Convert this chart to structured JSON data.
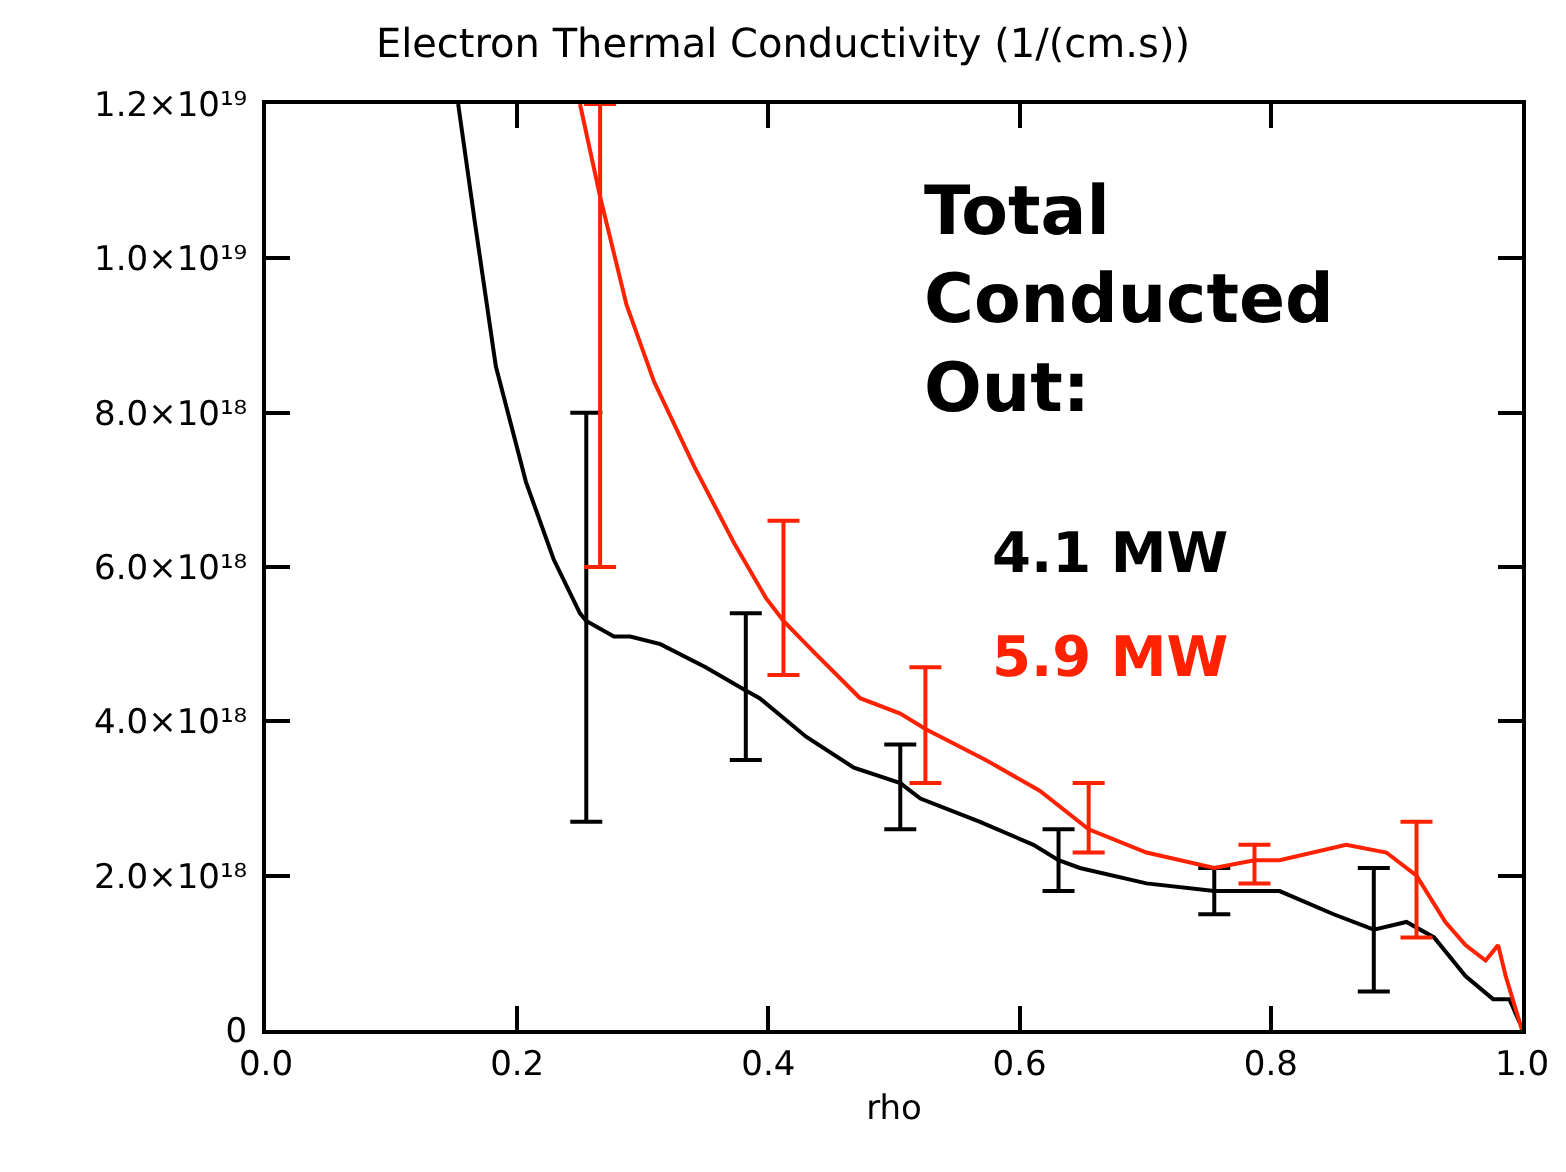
{
  "chart_data": {
    "type": "line",
    "title": "Electron Thermal Conductivity (1/(cm.s))",
    "xlabel": "rho",
    "annotations": [
      "Total Conducted Out:"
    ],
    "xlim": [
      0,
      1
    ],
    "xticks": [
      {
        "value": 0,
        "label": "0.0"
      },
      {
        "value": 0.2,
        "label": "0.2"
      },
      {
        "value": 0.4,
        "label": "0.4"
      },
      {
        "value": 0.6,
        "label": "0.6"
      },
      {
        "value": 0.8,
        "label": "0.8"
      },
      {
        "value": 1,
        "label": "1.0"
      }
    ],
    "ylim": [
      0,
      1.2e+19
    ],
    "yticks": [
      0,
      {
        "value": 2e+18,
        "label": "2.0×10¹⁸"
      },
      {
        "value": 4e+18,
        "label": "4.0×10¹⁸"
      },
      {
        "value": 6e+18,
        "label": "6.0×10¹⁸"
      },
      {
        "value": 8e+18,
        "label": "8.0×10¹⁸"
      },
      {
        "value": 1e+19,
        "label": "1.0×10¹⁹"
      },
      {
        "value": 1.2e+19,
        "label": "1.2×10¹⁹"
      }
    ],
    "grid": false,
    "legend": false,
    "marker": "none",
    "line_style": "solid",
    "series": [
      {
        "name": "4.1 MW",
        "color": "#000000",
        "x": [
          0.153,
          0.166,
          0.183,
          0.207,
          0.229,
          0.25,
          0.255,
          0.277,
          0.29,
          0.314,
          0.35,
          0.382,
          0.393,
          0.43,
          0.468,
          0.505,
          0.521,
          0.568,
          0.611,
          0.631,
          0.648,
          0.701,
          0.755,
          0.807,
          0.85,
          0.882,
          0.908,
          0.93,
          0.955,
          0.977,
          0.99,
          0.998
        ],
        "values": [
          1.2e+19,
          1.05e+19,
          8.6e+18,
          7.1e+18,
          6.1e+18,
          5.4e+18,
          5.3e+18,
          5.1e+18,
          5.1e+18,
          5e+18,
          4.7e+18,
          4.4e+18,
          4.3e+18,
          3.8e+18,
          3.4e+18,
          3.2e+18,
          3e+18,
          2.7e+18,
          2.4e+18,
          2.2e+18,
          2.1e+18,
          1.9e+18,
          1.8e+18,
          1.8e+18,
          1.5e+18,
          1.3e+18,
          1.4e+18,
          1.2e+18,
          7e+17,
          4e+17,
          4e+17,
          1e+17
        ],
        "errors": [
          null,
          null,
          null,
          null,
          null,
          null,
          [
            2.7e+18,
            8e+18
          ],
          null,
          null,
          null,
          null,
          [
            3.5e+18,
            5.4e+18
          ],
          null,
          null,
          null,
          [
            2.6e+18,
            3.7e+18
          ],
          null,
          null,
          null,
          [
            1.8e+18,
            2.6e+18
          ],
          null,
          null,
          [
            1.5e+18,
            2.1e+18
          ],
          null,
          null,
          [
            5e+17,
            2.1e+18
          ],
          null,
          null,
          null,
          null,
          null,
          null
        ]
      },
      {
        "name": "5.9 MW",
        "color": "#ff2200",
        "x": [
          0.25,
          0.266,
          0.287,
          0.309,
          0.341,
          0.373,
          0.398,
          0.412,
          0.436,
          0.473,
          0.505,
          0.525,
          0.573,
          0.616,
          0.655,
          0.701,
          0.755,
          0.787,
          0.807,
          0.86,
          0.892,
          0.916,
          0.939,
          0.955,
          0.971,
          0.981,
          0.987,
          1.0
        ],
        "values": [
          1.2e+19,
          1.08e+19,
          9.4e+18,
          8.4e+18,
          7.3e+18,
          6.3e+18,
          5.6e+18,
          5.3e+18,
          4.9e+18,
          4.3e+18,
          4.1e+18,
          3.9e+18,
          3.5e+18,
          3.1e+18,
          2.6e+18,
          2.3e+18,
          2.1e+18,
          2.2e+18,
          2.2e+18,
          2.4e+18,
          2.3e+18,
          2e+18,
          1.4e+18,
          1.1e+18,
          9e+17,
          1.1e+18,
          7e+17,
          0
        ],
        "errors": [
          null,
          [
            6e+18,
            1.2e+19
          ],
          null,
          null,
          null,
          null,
          null,
          [
            4.6e+18,
            6.6e+18
          ],
          null,
          null,
          null,
          [
            3.2e+18,
            4.7e+18
          ],
          null,
          null,
          [
            2.3e+18,
            3.2e+18
          ],
          null,
          null,
          [
            1.9e+18,
            2.4e+18
          ],
          null,
          null,
          null,
          [
            1.2e+18,
            2.7e+18
          ],
          null,
          null,
          null,
          null,
          null,
          null
        ]
      }
    ]
  }
}
